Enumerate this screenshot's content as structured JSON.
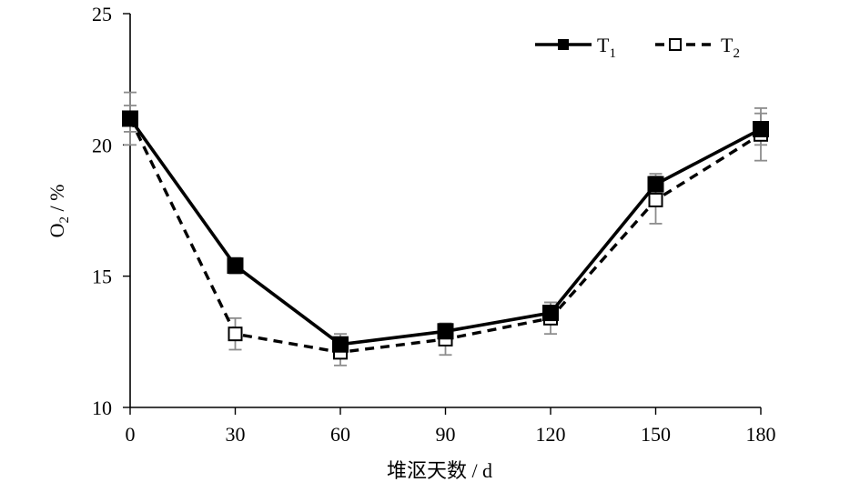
{
  "chart_data": {
    "type": "line",
    "x": [
      0,
      30,
      60,
      90,
      120,
      150,
      180
    ],
    "xlabel": "堆沤天数 / d",
    "ylabel_main": "O",
    "ylabel_sub": "2",
    "ylabel_rest": " / %",
    "ylim": [
      10,
      25
    ],
    "yticks": [
      10,
      15,
      20,
      25
    ],
    "xlim": [
      0,
      180
    ],
    "legend_position": "top-right",
    "grid": false,
    "series": [
      {
        "name_main": "T",
        "name_sub": "1",
        "marker": "filled-square",
        "line_style": "solid",
        "values": [
          21.0,
          15.4,
          12.4,
          12.9,
          13.6,
          18.5,
          20.6
        ],
        "errors": [
          0.5,
          0.3,
          0.4,
          0.3,
          0.4,
          0.4,
          0.6
        ]
      },
      {
        "name_main": "T",
        "name_sub": "2",
        "marker": "open-square",
        "line_style": "dashed",
        "values": [
          21.0,
          12.8,
          12.1,
          12.6,
          13.4,
          17.9,
          20.4
        ],
        "errors": [
          1.0,
          0.6,
          0.5,
          0.6,
          0.6,
          0.9,
          1.0
        ]
      }
    ],
    "colors": {
      "line": "#000000",
      "error_bar": "#8c8c8c"
    }
  }
}
